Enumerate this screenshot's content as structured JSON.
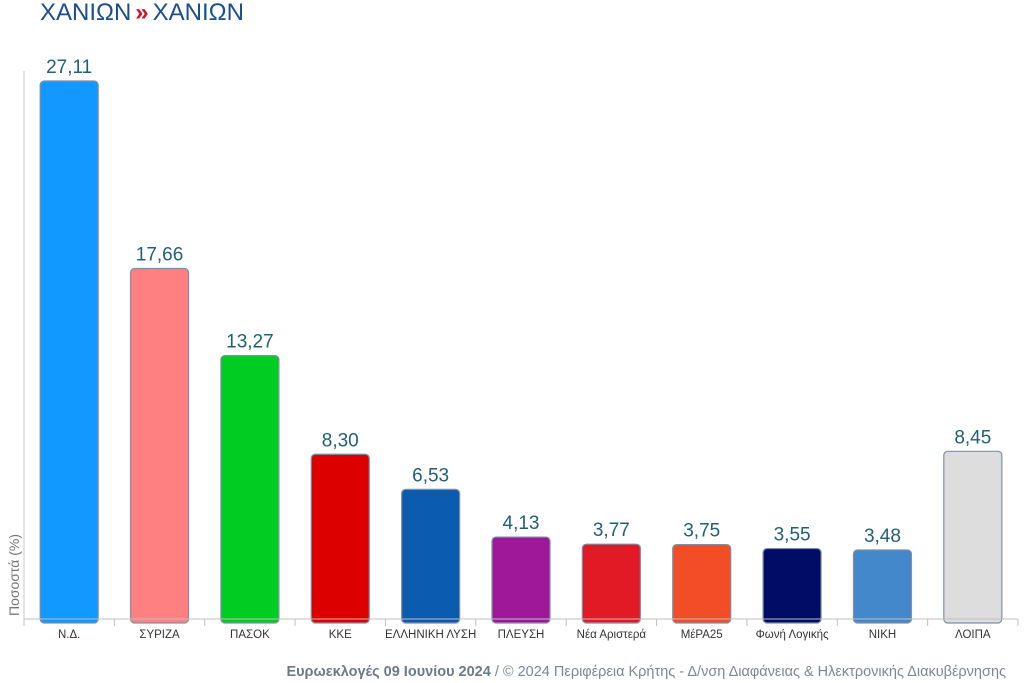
{
  "header": {
    "region": "ΧΑΝΙΩΝ",
    "separator": "»",
    "subregion": "ΧΑΝΙΩΝ"
  },
  "footer": {
    "election": "Ευρωεκλογές 09 Ιουνίου 2024",
    "credit": " / © 2024 Περιφέρεια Κρήτης - Δ/νση Διαφάνειας & Ηλεκτρονικής Διακυβέρνησης"
  },
  "chart_data": {
    "type": "bar",
    "title": "",
    "ylabel": "Ποσοστά (%)",
    "xlabel": "",
    "ylim": [
      0,
      27.11
    ],
    "grid": false,
    "legend": "none",
    "categories": [
      "Ν.Δ.",
      "ΣΥΡΙΖΑ",
      "ΠΑΣΟΚ",
      "ΚΚΕ",
      "ΕΛΛΗΝΙΚΗ ΛΥΣΗ",
      "ΠΛΕΥΣΗ",
      "Νέα Αριστερά",
      "ΜέΡΑ25",
      "Φωνή Λογικής",
      "ΝΙΚΗ",
      "ΛΟΙΠΑ"
    ],
    "values": [
      27.11,
      17.66,
      13.27,
      8.3,
      6.53,
      4.13,
      3.77,
      3.75,
      3.55,
      3.48,
      8.45
    ],
    "value_labels": [
      "27,11",
      "17,66",
      "13,27",
      "8,30",
      "6,53",
      "4,13",
      "3,77",
      "3,75",
      "3,55",
      "3,48",
      "8,45"
    ],
    "colors": [
      "#1199ff",
      "#ff8080",
      "#00cc22",
      "#dd0000",
      "#0b5cb0",
      "#a0189a",
      "#e21a26",
      "#f14e28",
      "#000c66",
      "#4488cc",
      "#dddddd"
    ]
  }
}
